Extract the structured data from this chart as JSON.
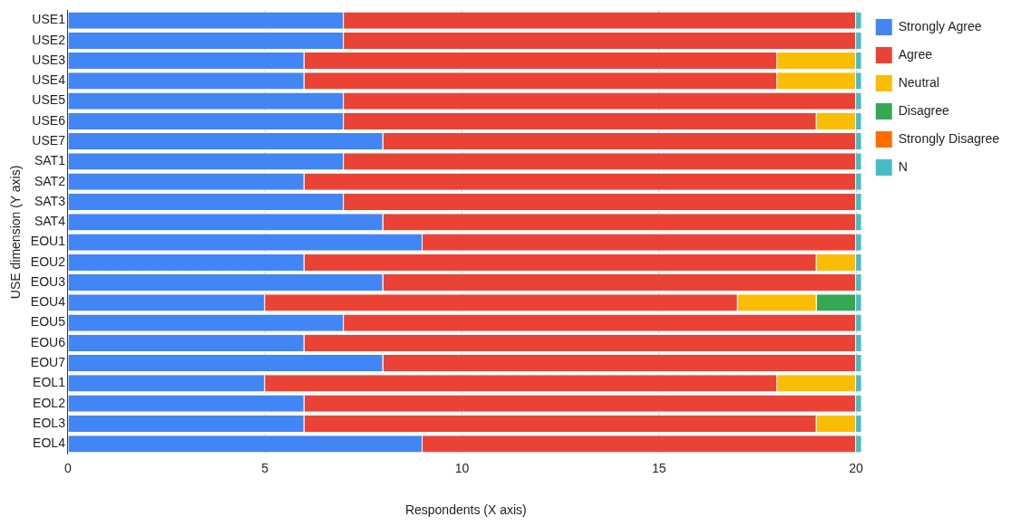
{
  "chart_data": {
    "type": "bar",
    "orientation": "horizontal",
    "stacked": true,
    "xlabel": "Respondents (X axis)",
    "ylabel": "USE dimension (Y axis)",
    "categories": [
      "USE1",
      "USE2",
      "USE3",
      "USE4",
      "USE5",
      "USE6",
      "USE7",
      "SAT1",
      "SAT2",
      "SAT3",
      "SAT4",
      "EOU1",
      "EOU2",
      "EOU3",
      "EOU4",
      "EOU5",
      "EOU6",
      "EOU7",
      "EOL1",
      "EOL2",
      "EOL3",
      "EOL4"
    ],
    "series": [
      {
        "name": "Strongly Agree",
        "color": "#4285f4",
        "values": [
          7,
          7,
          6,
          6,
          7,
          7,
          8,
          7,
          6,
          7,
          8,
          9,
          6,
          8,
          5,
          7,
          6,
          8,
          5,
          6,
          6,
          9
        ]
      },
      {
        "name": "Agree",
        "color": "#ea4335",
        "values": [
          13,
          13,
          12,
          12,
          13,
          12,
          12,
          13,
          14,
          13,
          12,
          11,
          13,
          12,
          12,
          13,
          14,
          12,
          13,
          14,
          13,
          11
        ]
      },
      {
        "name": "Neutral",
        "color": "#fbbc04",
        "values": [
          0,
          0,
          2,
          2,
          0,
          1,
          0,
          0,
          0,
          0,
          0,
          0,
          1,
          0,
          2,
          0,
          0,
          0,
          2,
          0,
          1,
          0
        ]
      },
      {
        "name": "Disagree",
        "color": "#34a853",
        "values": [
          0,
          0,
          0,
          0,
          0,
          0,
          0,
          0,
          0,
          0,
          0,
          0,
          0,
          0,
          1,
          0,
          0,
          0,
          0,
          0,
          0,
          0
        ]
      },
      {
        "name": "Strongly Disagree",
        "color": "#ff6d01",
        "values": [
          0,
          0,
          0,
          0,
          0,
          0,
          0,
          0,
          0,
          0,
          0,
          0,
          0,
          0,
          0,
          0,
          0,
          0,
          0,
          0,
          0,
          0
        ]
      },
      {
        "name": "N",
        "color": "#46bdc6",
        "values": [
          0.15,
          0.15,
          0.15,
          0.15,
          0.15,
          0.15,
          0.15,
          0.15,
          0.15,
          0.15,
          0.15,
          0.15,
          0.15,
          0.15,
          0.15,
          0.15,
          0.15,
          0.15,
          0.15,
          0.15,
          0.15,
          0.15
        ]
      }
    ],
    "xlim": [
      0,
      20.2
    ],
    "xticks": [
      0,
      5,
      10,
      15,
      20
    ],
    "grid": "x",
    "legend": "top right"
  }
}
